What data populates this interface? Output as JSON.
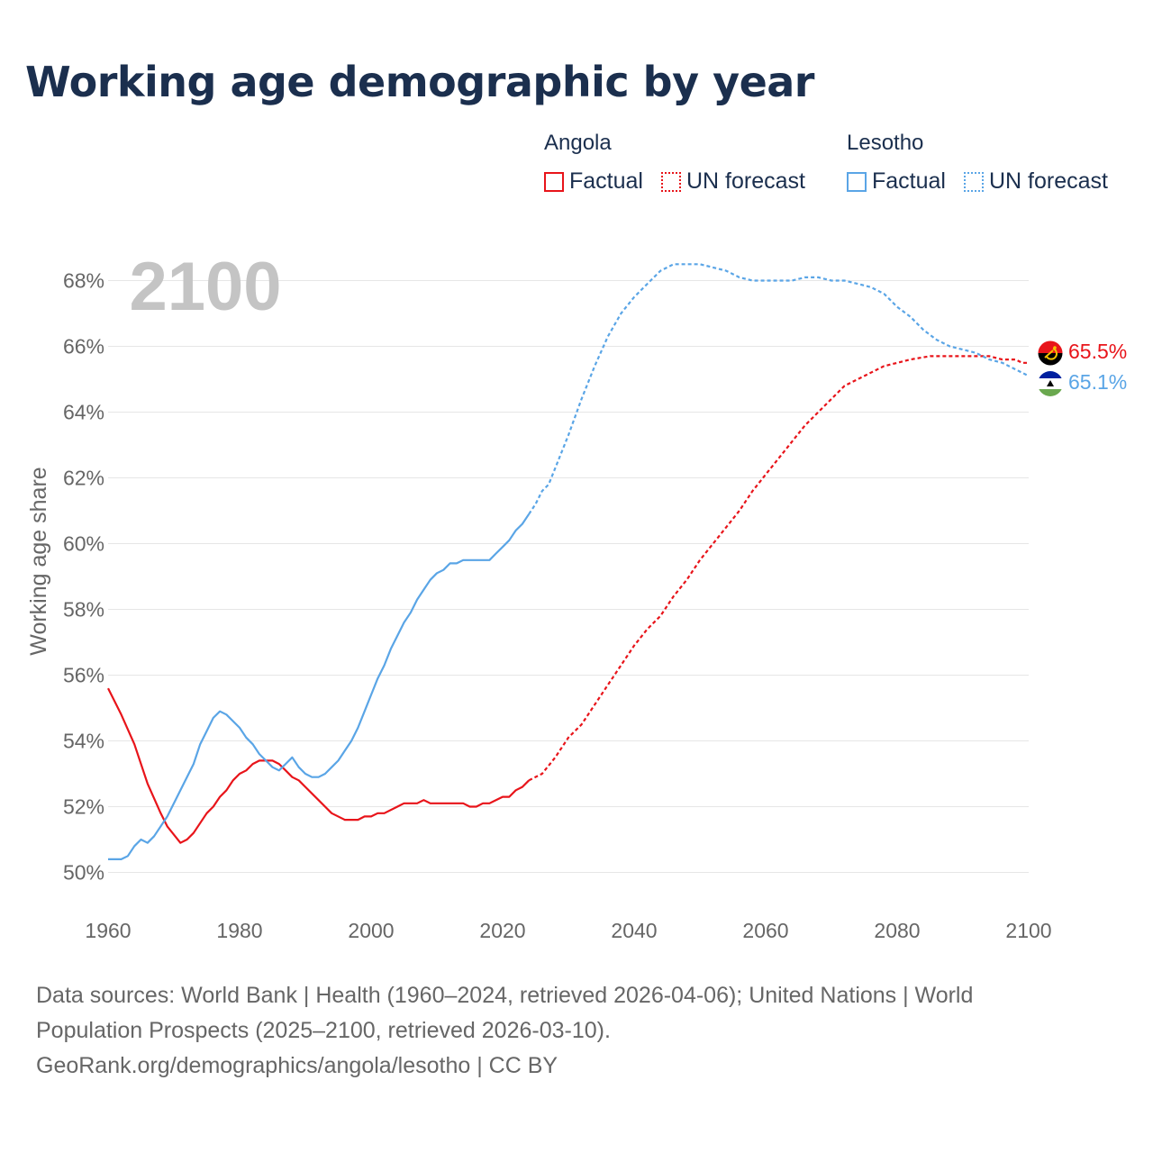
{
  "title": "Working age demographic by year",
  "legend": {
    "angola": {
      "name": "Angola",
      "factual": "Factual",
      "forecast": "UN forecast",
      "color": "#e8141a"
    },
    "lesotho": {
      "name": "Lesotho",
      "factual": "Factual",
      "forecast": "UN forecast",
      "color": "#5aa5e6"
    }
  },
  "year_watermark": "2100",
  "end_labels": {
    "angola": "65.5%",
    "lesotho": "65.1%"
  },
  "source_line1": "Data sources: World Bank | Health (1960–2024, retrieved 2026-04-06); United Nations | World",
  "source_line2": "Population Prospects (2025–2100, retrieved 2026-03-10).",
  "source_line3": "GeoRank.org/demographics/angola/lesotho | CC BY",
  "chart_data": {
    "type": "line",
    "title": "Working age demographic by year",
    "xlabel": "",
    "ylabel": "Working age share",
    "xlim": [
      1960,
      2100
    ],
    "ylim": [
      49,
      69
    ],
    "x_ticks": [
      1960,
      1980,
      2000,
      2020,
      2040,
      2060,
      2080,
      2100
    ],
    "x_tick_labels": [
      "1960",
      "1980",
      "2000",
      "2020",
      "2040",
      "2060",
      "2080",
      "2100"
    ],
    "y_ticks": [
      50,
      52,
      54,
      56,
      58,
      60,
      62,
      64,
      66,
      68
    ],
    "y_tick_labels": [
      "50%",
      "52%",
      "54%",
      "56%",
      "58%",
      "60%",
      "62%",
      "64%",
      "66%",
      "68%"
    ],
    "grid": true,
    "factual_end_year": 2024,
    "series": [
      {
        "name": "Angola",
        "color": "#e8141a",
        "points": [
          [
            1960,
            55.6
          ],
          [
            1962,
            54.8
          ],
          [
            1964,
            53.9
          ],
          [
            1966,
            52.7
          ],
          [
            1968,
            51.8
          ],
          [
            1969,
            51.4
          ],
          [
            1971,
            50.9
          ],
          [
            1972,
            51.0
          ],
          [
            1973,
            51.2
          ],
          [
            1975,
            51.8
          ],
          [
            1976,
            52.0
          ],
          [
            1977,
            52.3
          ],
          [
            1978,
            52.5
          ],
          [
            1979,
            52.8
          ],
          [
            1980,
            53.0
          ],
          [
            1981,
            53.1
          ],
          [
            1982,
            53.3
          ],
          [
            1983,
            53.4
          ],
          [
            1985,
            53.4
          ],
          [
            1986,
            53.3
          ],
          [
            1987,
            53.1
          ],
          [
            1988,
            52.9
          ],
          [
            1989,
            52.8
          ],
          [
            1990,
            52.6
          ],
          [
            1992,
            52.2
          ],
          [
            1994,
            51.8
          ],
          [
            1996,
            51.6
          ],
          [
            1998,
            51.6
          ],
          [
            1999,
            51.7
          ],
          [
            2000,
            51.7
          ],
          [
            2001,
            51.8
          ],
          [
            2002,
            51.8
          ],
          [
            2004,
            52.0
          ],
          [
            2005,
            52.1
          ],
          [
            2007,
            52.1
          ],
          [
            2008,
            52.2
          ],
          [
            2009,
            52.1
          ],
          [
            2014,
            52.1
          ],
          [
            2015,
            52.0
          ],
          [
            2016,
            52.0
          ],
          [
            2017,
            52.1
          ],
          [
            2018,
            52.1
          ],
          [
            2020,
            52.3
          ],
          [
            2021,
            52.3
          ],
          [
            2022,
            52.5
          ],
          [
            2023,
            52.6
          ],
          [
            2024,
            52.8
          ],
          [
            2026,
            53.0
          ],
          [
            2028,
            53.5
          ],
          [
            2030,
            54.1
          ],
          [
            2032,
            54.5
          ],
          [
            2034,
            55.1
          ],
          [
            2036,
            55.7
          ],
          [
            2038,
            56.3
          ],
          [
            2040,
            56.9
          ],
          [
            2042,
            57.4
          ],
          [
            2044,
            57.8
          ],
          [
            2046,
            58.4
          ],
          [
            2048,
            58.9
          ],
          [
            2050,
            59.5
          ],
          [
            2052,
            60.0
          ],
          [
            2054,
            60.5
          ],
          [
            2056,
            61.0
          ],
          [
            2058,
            61.6
          ],
          [
            2060,
            62.1
          ],
          [
            2062,
            62.6
          ],
          [
            2064,
            63.1
          ],
          [
            2066,
            63.6
          ],
          [
            2068,
            64.0
          ],
          [
            2070,
            64.4
          ],
          [
            2072,
            64.8
          ],
          [
            2074,
            65.0
          ],
          [
            2076,
            65.2
          ],
          [
            2078,
            65.4
          ],
          [
            2080,
            65.5
          ],
          [
            2082,
            65.6
          ],
          [
            2085,
            65.7
          ],
          [
            2088,
            65.7
          ],
          [
            2094,
            65.7
          ],
          [
            2096,
            65.6
          ],
          [
            2098,
            65.6
          ],
          [
            2099,
            65.5
          ],
          [
            2100,
            65.5
          ]
        ]
      },
      {
        "name": "Lesotho",
        "color": "#5aa5e6",
        "points": [
          [
            1960,
            50.4
          ],
          [
            1962,
            50.4
          ],
          [
            1963,
            50.5
          ],
          [
            1964,
            50.8
          ],
          [
            1965,
            51.0
          ],
          [
            1966,
            50.9
          ],
          [
            1967,
            51.1
          ],
          [
            1969,
            51.7
          ],
          [
            1971,
            52.5
          ],
          [
            1973,
            53.3
          ],
          [
            1974,
            53.9
          ],
          [
            1975,
            54.3
          ],
          [
            1976,
            54.7
          ],
          [
            1977,
            54.9
          ],
          [
            1978,
            54.8
          ],
          [
            1980,
            54.4
          ],
          [
            1981,
            54.1
          ],
          [
            1982,
            53.9
          ],
          [
            1983,
            53.6
          ],
          [
            1984,
            53.4
          ],
          [
            1985,
            53.2
          ],
          [
            1986,
            53.1
          ],
          [
            1987,
            53.3
          ],
          [
            1988,
            53.5
          ],
          [
            1989,
            53.2
          ],
          [
            1990,
            53.0
          ],
          [
            1991,
            52.9
          ],
          [
            1992,
            52.9
          ],
          [
            1993,
            53.0
          ],
          [
            1994,
            53.2
          ],
          [
            1995,
            53.4
          ],
          [
            1996,
            53.7
          ],
          [
            1997,
            54.0
          ],
          [
            1998,
            54.4
          ],
          [
            1999,
            54.9
          ],
          [
            2000,
            55.4
          ],
          [
            2001,
            55.9
          ],
          [
            2002,
            56.3
          ],
          [
            2003,
            56.8
          ],
          [
            2004,
            57.2
          ],
          [
            2005,
            57.6
          ],
          [
            2006,
            57.9
          ],
          [
            2007,
            58.3
          ],
          [
            2008,
            58.6
          ],
          [
            2009,
            58.9
          ],
          [
            2010,
            59.1
          ],
          [
            2011,
            59.2
          ],
          [
            2012,
            59.4
          ],
          [
            2013,
            59.4
          ],
          [
            2014,
            59.5
          ],
          [
            2018,
            59.5
          ],
          [
            2019,
            59.7
          ],
          [
            2020,
            59.9
          ],
          [
            2021,
            60.1
          ],
          [
            2022,
            60.4
          ],
          [
            2023,
            60.6
          ],
          [
            2024,
            60.9
          ],
          [
            2025,
            61.2
          ],
          [
            2026,
            61.6
          ],
          [
            2027,
            61.8
          ],
          [
            2028,
            62.3
          ],
          [
            2030,
            63.3
          ],
          [
            2032,
            64.4
          ],
          [
            2034,
            65.4
          ],
          [
            2036,
            66.3
          ],
          [
            2038,
            67.0
          ],
          [
            2040,
            67.5
          ],
          [
            2042,
            67.9
          ],
          [
            2044,
            68.3
          ],
          [
            2046,
            68.5
          ],
          [
            2048,
            68.5
          ],
          [
            2050,
            68.5
          ],
          [
            2052,
            68.4
          ],
          [
            2054,
            68.3
          ],
          [
            2056,
            68.1
          ],
          [
            2058,
            68.0
          ],
          [
            2060,
            68.0
          ],
          [
            2062,
            68.0
          ],
          [
            2064,
            68.0
          ],
          [
            2066,
            68.1
          ],
          [
            2068,
            68.1
          ],
          [
            2070,
            68.0
          ],
          [
            2072,
            68.0
          ],
          [
            2074,
            67.9
          ],
          [
            2076,
            67.8
          ],
          [
            2078,
            67.6
          ],
          [
            2080,
            67.2
          ],
          [
            2082,
            66.9
          ],
          [
            2084,
            66.5
          ],
          [
            2086,
            66.2
          ],
          [
            2088,
            66.0
          ],
          [
            2090,
            65.9
          ],
          [
            2092,
            65.8
          ],
          [
            2094,
            65.6
          ],
          [
            2096,
            65.5
          ],
          [
            2098,
            65.3
          ],
          [
            2100,
            65.1
          ]
        ]
      }
    ]
  }
}
